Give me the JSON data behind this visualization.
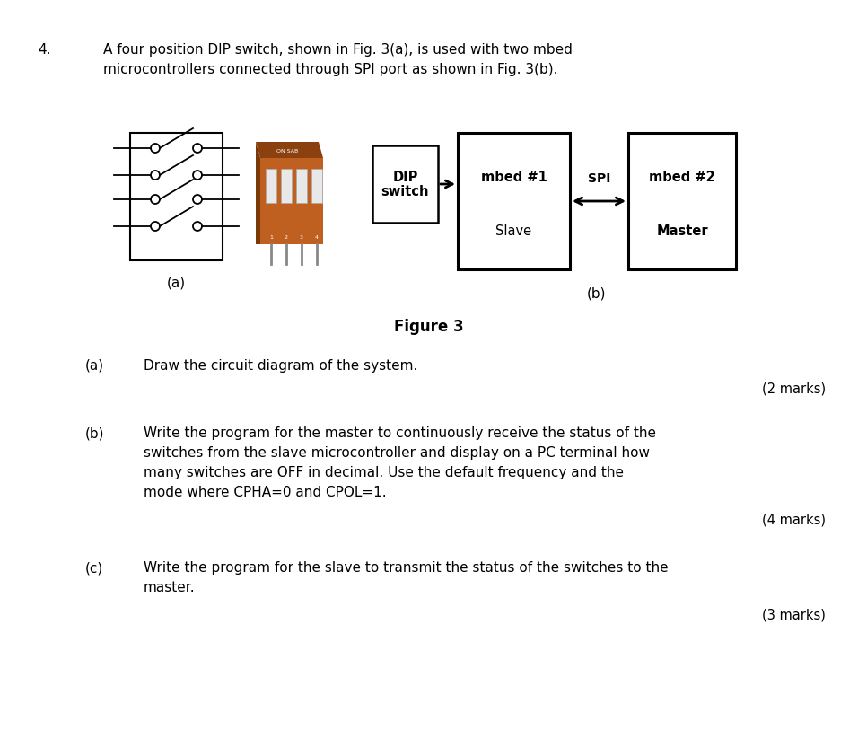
{
  "background_color": "#ffffff",
  "question_number": "4.",
  "question_text_line1": "A four position DIP switch, shown in Fig. 3(a), is used with two mbed",
  "question_text_line2": "microcontrollers connected through SPI port as shown in Fig. 3(b).",
  "figure_caption": "Figure 3",
  "figure_label_a": "(a)",
  "figure_label_b": "(b)",
  "dip_box_label_line1": "DIP",
  "dip_box_label_line2": "switch",
  "mbed1_label_line1": "mbed #1",
  "mbed1_label_line2": "Slave",
  "mbed2_label_line1": "mbed #2",
  "mbed2_label_line2": "Master",
  "spi_label": "SPI",
  "sub_a_label": "(a)",
  "sub_a_text": "Draw the circuit diagram of the system.",
  "sub_a_marks": "(2 marks)",
  "sub_b_label": "(b)",
  "sub_b_text_line1": "Write the program for the master to continuously receive the status of the",
  "sub_b_text_line2": "switches from the slave microcontroller and display on a PC terminal how",
  "sub_b_text_line3": "many switches are OFF in decimal. Use the default frequency and the",
  "sub_b_text_line4": "mode where CPHA=0 and CPOL=1.",
  "sub_b_marks": "(4 marks)",
  "sub_c_label": "(c)",
  "sub_c_text_line1": "Write the program for the slave to transmit the status of the switches to the",
  "sub_c_text_line2": "master.",
  "sub_c_marks": "(3 marks)",
  "dip_chip_color": "#c06020",
  "dip_chip_dark": "#8B4010",
  "dip_chip_pin": "#999999",
  "text_color": "#000000",
  "font_size_body": 11.0,
  "font_size_marks": 10.5,
  "font_size_fig": 12.0
}
